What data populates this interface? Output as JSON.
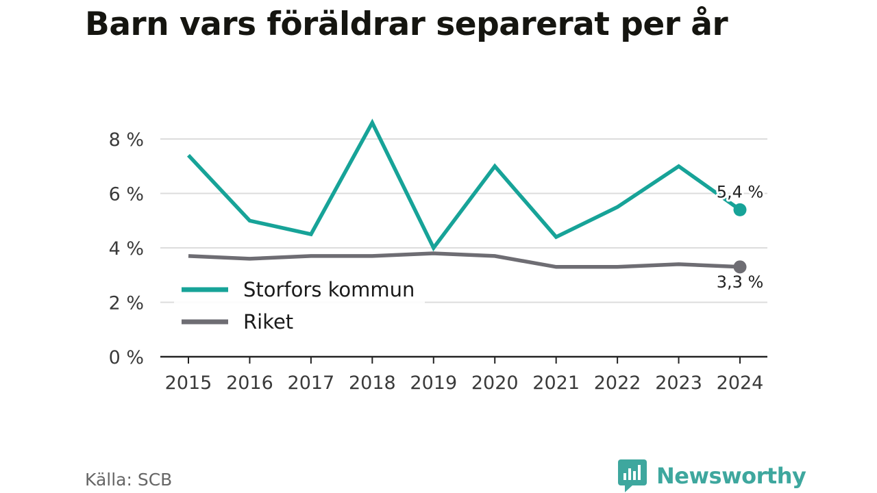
{
  "title": "Barn vars föräldrar separerat per år",
  "source": "Källa: SCB",
  "brand": {
    "name": "Newsworthy",
    "color": "#3ea79e",
    "icon": "newsworthy-logo-icon"
  },
  "chart_data": {
    "type": "line",
    "title": "Barn vars föräldrar separerat per år",
    "x": [
      "2015",
      "2016",
      "2017",
      "2018",
      "2019",
      "2020",
      "2021",
      "2022",
      "2023",
      "2024"
    ],
    "ylim": [
      0,
      8.6
    ],
    "yticks": [
      0,
      2,
      4,
      6,
      8
    ],
    "ytick_labels": [
      "0 %",
      "2 %",
      "4 %",
      "6 %",
      "8 %"
    ],
    "grid": true,
    "legend": "bottom-left",
    "series": [
      {
        "name": "Storfors kommun",
        "color": "#17a398",
        "values": [
          7.4,
          5.0,
          4.5,
          8.6,
          4.0,
          7.0,
          4.4,
          5.5,
          7.0,
          5.4
        ],
        "end_label": "5,4 %"
      },
      {
        "name": "Riket",
        "color": "#6e6d73",
        "values": [
          3.7,
          3.6,
          3.7,
          3.7,
          3.8,
          3.7,
          3.3,
          3.3,
          3.4,
          3.3
        ],
        "end_label": "3,3 %"
      }
    ]
  }
}
